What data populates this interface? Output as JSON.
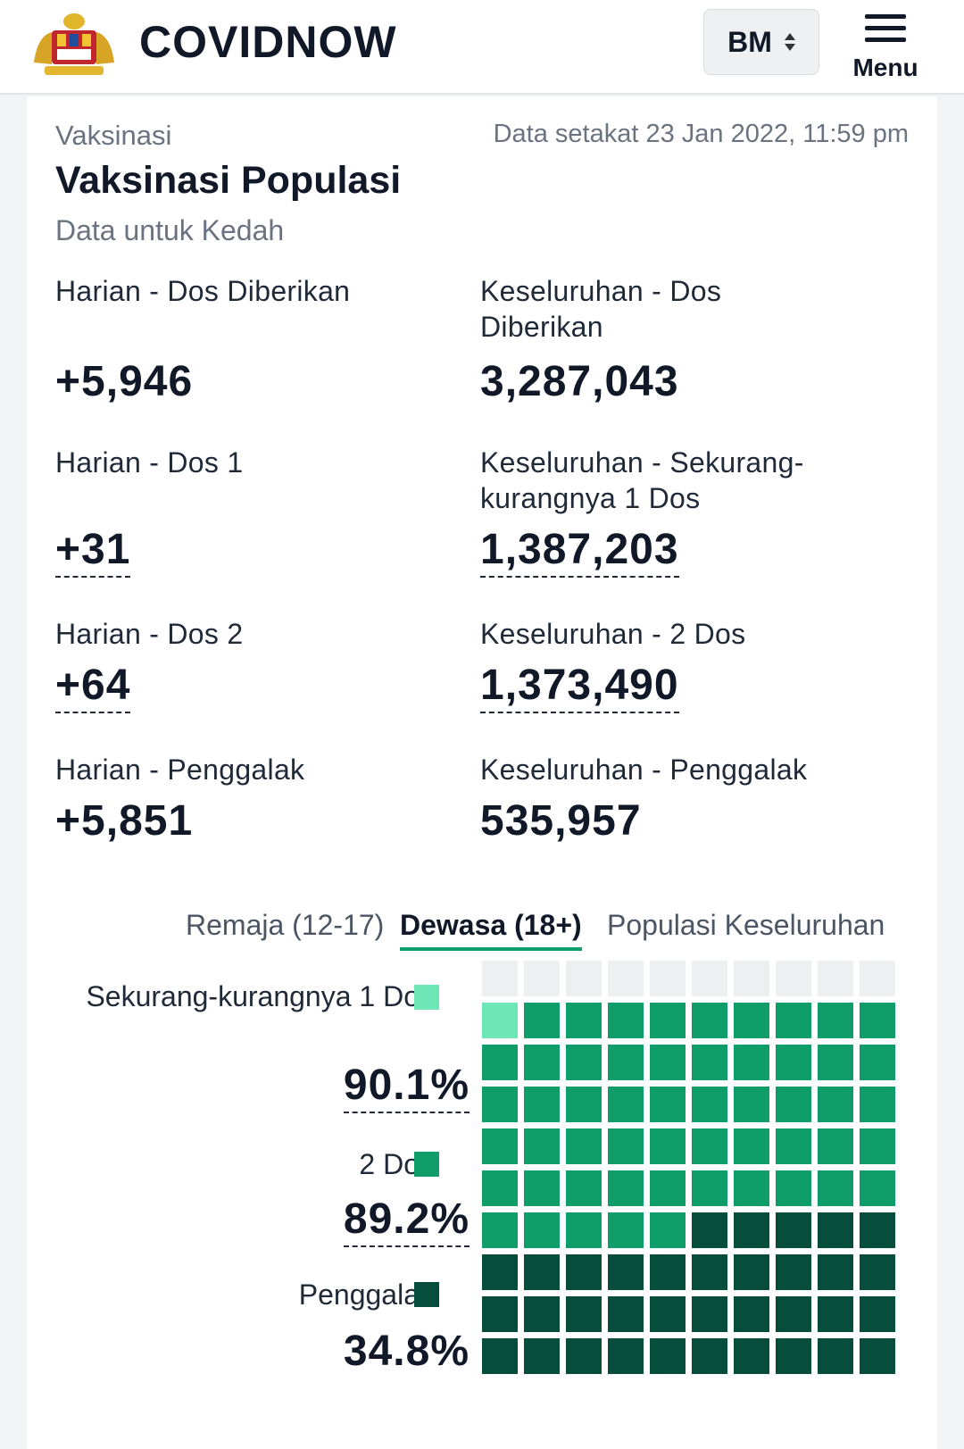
{
  "header": {
    "brand": "COVIDNOW",
    "language": "BM",
    "menu_label": "Menu"
  },
  "page": {
    "section": "Vaksinasi",
    "updated": "Data setakat 23 Jan 2022, 11:59 pm",
    "title": "Vaksinasi Populasi",
    "subtitle": "Data untuk Kedah"
  },
  "stats": [
    {
      "label": "Harian - Dos Diberikan",
      "value": "+5,946"
    },
    {
      "label": "Keseluruhan - Dos Diberikan",
      "value": "3,287,043"
    },
    {
      "label": "Harian - Dos 1",
      "value": "+31"
    },
    {
      "label": "Keseluruhan - Sekurang-kurangnya 1 Dos",
      "value": "1,387,203"
    },
    {
      "label": "Harian - Dos 2",
      "value": "+64"
    },
    {
      "label": "Keseluruhan - 2 Dos",
      "value": "1,373,490"
    },
    {
      "label": "Harian - Penggalak",
      "value": "+5,851"
    },
    {
      "label": "Keseluruhan - Penggalak",
      "value": "535,957"
    }
  ],
  "tabs": [
    {
      "label": "Remaja (12-17)",
      "active": false
    },
    {
      "label": "Dewasa (18+)",
      "active": true
    },
    {
      "label": "Populasi Keseluruhan",
      "active": false
    }
  ],
  "waffle": {
    "legend": [
      {
        "label": "Sekurang-kurangnya 1 Dos",
        "percent": "90.1%",
        "value": 90.1,
        "color": "#6ee7b7"
      },
      {
        "label": "2 Dos",
        "percent": "89.2%",
        "value": 89.2,
        "color": "#0f9d6a"
      },
      {
        "label": "Penggalak",
        "percent": "34.8%",
        "value": 34.8,
        "color": "#064e3b"
      }
    ],
    "empty_color": "#eeeff1"
  }
}
